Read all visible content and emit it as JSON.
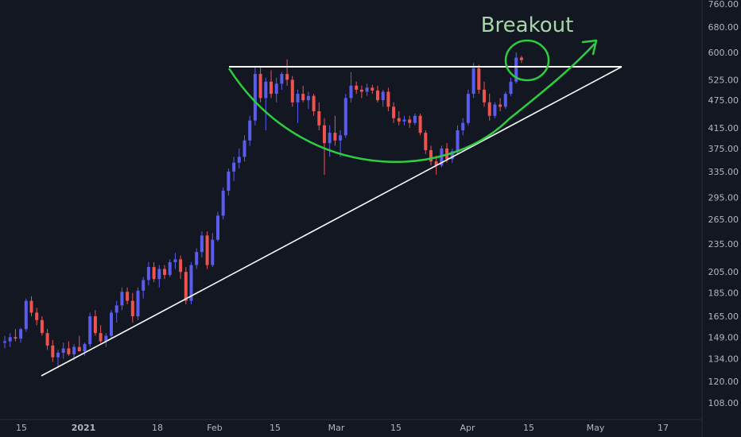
{
  "chart_data": {
    "type": "candlestick",
    "title": "",
    "xlabel": "",
    "ylabel": "",
    "y_scale": "log",
    "ylim": [
      100,
      790
    ],
    "grid": false,
    "legend": "none",
    "y_ticks": [
      "760.00",
      "680.00",
      "600.00",
      "525.00",
      "475.00",
      "415.00",
      "375.00",
      "335.00",
      "295.00",
      "265.00",
      "235.00",
      "205.00",
      "185.00",
      "165.00",
      "149.00",
      "134.00",
      "120.00",
      "108.00"
    ],
    "x_ticks": [
      "15",
      "2021",
      "18",
      "Feb",
      "15",
      "Mar",
      "15",
      "Apr",
      "15",
      "May",
      "17"
    ],
    "colors": {
      "background": "#131722",
      "up": "#5a5cf0",
      "down": "#ef5350",
      "cup": "#2ecc40",
      "lines": "#ffffff",
      "annotation": "#a5d6a7"
    },
    "annotations": {
      "label": "Breakout"
    },
    "candles": [
      {
        "o": 145,
        "h": 150,
        "l": 141,
        "c": 146
      },
      {
        "o": 146,
        "h": 152,
        "l": 142,
        "c": 149
      },
      {
        "o": 149,
        "h": 155,
        "l": 146,
        "c": 148
      },
      {
        "o": 148,
        "h": 156,
        "l": 145,
        "c": 155
      },
      {
        "o": 155,
        "h": 180,
        "l": 153,
        "c": 178
      },
      {
        "o": 178,
        "h": 182,
        "l": 165,
        "c": 168
      },
      {
        "o": 168,
        "h": 172,
        "l": 158,
        "c": 162
      },
      {
        "o": 162,
        "h": 165,
        "l": 150,
        "c": 152
      },
      {
        "o": 152,
        "h": 155,
        "l": 140,
        "c": 143
      },
      {
        "o": 143,
        "h": 147,
        "l": 132,
        "c": 135
      },
      {
        "o": 135,
        "h": 140,
        "l": 128,
        "c": 138
      },
      {
        "o": 138,
        "h": 145,
        "l": 134,
        "c": 141
      },
      {
        "o": 141,
        "h": 146,
        "l": 136,
        "c": 137
      },
      {
        "o": 137,
        "h": 144,
        "l": 133,
        "c": 142
      },
      {
        "o": 142,
        "h": 150,
        "l": 139,
        "c": 139
      },
      {
        "o": 139,
        "h": 145,
        "l": 136,
        "c": 144
      },
      {
        "o": 144,
        "h": 168,
        "l": 142,
        "c": 165
      },
      {
        "o": 165,
        "h": 170,
        "l": 150,
        "c": 152
      },
      {
        "o": 152,
        "h": 158,
        "l": 145,
        "c": 146
      },
      {
        "o": 146,
        "h": 152,
        "l": 142,
        "c": 150
      },
      {
        "o": 150,
        "h": 170,
        "l": 148,
        "c": 168
      },
      {
        "o": 168,
        "h": 178,
        "l": 160,
        "c": 174
      },
      {
        "o": 174,
        "h": 190,
        "l": 170,
        "c": 186
      },
      {
        "o": 186,
        "h": 190,
        "l": 175,
        "c": 178
      },
      {
        "o": 178,
        "h": 185,
        "l": 160,
        "c": 165
      },
      {
        "o": 165,
        "h": 190,
        "l": 162,
        "c": 187
      },
      {
        "o": 187,
        "h": 200,
        "l": 180,
        "c": 197
      },
      {
        "o": 197,
        "h": 215,
        "l": 192,
        "c": 210
      },
      {
        "o": 210,
        "h": 215,
        "l": 195,
        "c": 198
      },
      {
        "o": 198,
        "h": 212,
        "l": 190,
        "c": 208
      },
      {
        "o": 208,
        "h": 212,
        "l": 198,
        "c": 202
      },
      {
        "o": 202,
        "h": 218,
        "l": 200,
        "c": 215
      },
      {
        "o": 215,
        "h": 225,
        "l": 208,
        "c": 218
      },
      {
        "o": 218,
        "h": 222,
        "l": 198,
        "c": 205
      },
      {
        "o": 205,
        "h": 210,
        "l": 175,
        "c": 178
      },
      {
        "o": 178,
        "h": 215,
        "l": 175,
        "c": 212
      },
      {
        "o": 212,
        "h": 230,
        "l": 208,
        "c": 226
      },
      {
        "o": 226,
        "h": 250,
        "l": 220,
        "c": 245
      },
      {
        "o": 245,
        "h": 250,
        "l": 208,
        "c": 212
      },
      {
        "o": 212,
        "h": 248,
        "l": 210,
        "c": 240
      },
      {
        "o": 240,
        "h": 275,
        "l": 238,
        "c": 270
      },
      {
        "o": 270,
        "h": 310,
        "l": 265,
        "c": 305
      },
      {
        "o": 305,
        "h": 340,
        "l": 298,
        "c": 335
      },
      {
        "o": 335,
        "h": 360,
        "l": 320,
        "c": 350
      },
      {
        "o": 350,
        "h": 375,
        "l": 340,
        "c": 360
      },
      {
        "o": 360,
        "h": 400,
        "l": 352,
        "c": 390
      },
      {
        "o": 390,
        "h": 440,
        "l": 380,
        "c": 430
      },
      {
        "o": 430,
        "h": 560,
        "l": 420,
        "c": 540
      },
      {
        "o": 540,
        "h": 560,
        "l": 470,
        "c": 480
      },
      {
        "o": 480,
        "h": 530,
        "l": 410,
        "c": 520
      },
      {
        "o": 520,
        "h": 550,
        "l": 480,
        "c": 490
      },
      {
        "o": 490,
        "h": 530,
        "l": 470,
        "c": 515
      },
      {
        "o": 515,
        "h": 545,
        "l": 500,
        "c": 540
      },
      {
        "o": 540,
        "h": 580,
        "l": 510,
        "c": 525
      },
      {
        "o": 525,
        "h": 535,
        "l": 460,
        "c": 470
      },
      {
        "o": 470,
        "h": 500,
        "l": 425,
        "c": 490
      },
      {
        "o": 490,
        "h": 510,
        "l": 470,
        "c": 475
      },
      {
        "o": 475,
        "h": 495,
        "l": 455,
        "c": 485
      },
      {
        "o": 485,
        "h": 490,
        "l": 440,
        "c": 450
      },
      {
        "o": 450,
        "h": 470,
        "l": 410,
        "c": 420
      },
      {
        "o": 420,
        "h": 435,
        "l": 330,
        "c": 385
      },
      {
        "o": 385,
        "h": 420,
        "l": 360,
        "c": 405
      },
      {
        "o": 405,
        "h": 440,
        "l": 380,
        "c": 390
      },
      {
        "o": 390,
        "h": 410,
        "l": 360,
        "c": 400
      },
      {
        "o": 400,
        "h": 490,
        "l": 395,
        "c": 480
      },
      {
        "o": 480,
        "h": 545,
        "l": 470,
        "c": 510
      },
      {
        "o": 510,
        "h": 520,
        "l": 490,
        "c": 500
      },
      {
        "o": 500,
        "h": 510,
        "l": 480,
        "c": 495
      },
      {
        "o": 495,
        "h": 515,
        "l": 485,
        "c": 505
      },
      {
        "o": 505,
        "h": 512,
        "l": 490,
        "c": 498
      },
      {
        "o": 498,
        "h": 510,
        "l": 470,
        "c": 475
      },
      {
        "o": 475,
        "h": 500,
        "l": 460,
        "c": 495
      },
      {
        "o": 495,
        "h": 505,
        "l": 450,
        "c": 460
      },
      {
        "o": 460,
        "h": 470,
        "l": 425,
        "c": 435
      },
      {
        "o": 435,
        "h": 450,
        "l": 420,
        "c": 428
      },
      {
        "o": 428,
        "h": 440,
        "l": 420,
        "c": 432
      },
      {
        "o": 432,
        "h": 440,
        "l": 415,
        "c": 425
      },
      {
        "o": 425,
        "h": 445,
        "l": 420,
        "c": 440
      },
      {
        "o": 440,
        "h": 445,
        "l": 400,
        "c": 405
      },
      {
        "o": 405,
        "h": 410,
        "l": 365,
        "c": 372
      },
      {
        "o": 372,
        "h": 380,
        "l": 345,
        "c": 352
      },
      {
        "o": 352,
        "h": 362,
        "l": 330,
        "c": 345
      },
      {
        "o": 345,
        "h": 380,
        "l": 342,
        "c": 375
      },
      {
        "o": 375,
        "h": 385,
        "l": 350,
        "c": 356
      },
      {
        "o": 356,
        "h": 375,
        "l": 350,
        "c": 370
      },
      {
        "o": 370,
        "h": 420,
        "l": 365,
        "c": 410
      },
      {
        "o": 410,
        "h": 435,
        "l": 400,
        "c": 425
      },
      {
        "o": 425,
        "h": 500,
        "l": 420,
        "c": 490
      },
      {
        "o": 490,
        "h": 570,
        "l": 480,
        "c": 555
      },
      {
        "o": 555,
        "h": 565,
        "l": 490,
        "c": 500
      },
      {
        "o": 500,
        "h": 520,
        "l": 460,
        "c": 470
      },
      {
        "o": 470,
        "h": 490,
        "l": 430,
        "c": 440
      },
      {
        "o": 440,
        "h": 470,
        "l": 435,
        "c": 465
      },
      {
        "o": 465,
        "h": 480,
        "l": 450,
        "c": 460
      },
      {
        "o": 460,
        "h": 495,
        "l": 455,
        "c": 490
      },
      {
        "o": 490,
        "h": 530,
        "l": 485,
        "c": 520
      },
      {
        "o": 520,
        "h": 600,
        "l": 515,
        "c": 585
      },
      {
        "o": 585,
        "h": 590,
        "l": 570,
        "c": 578
      }
    ]
  }
}
